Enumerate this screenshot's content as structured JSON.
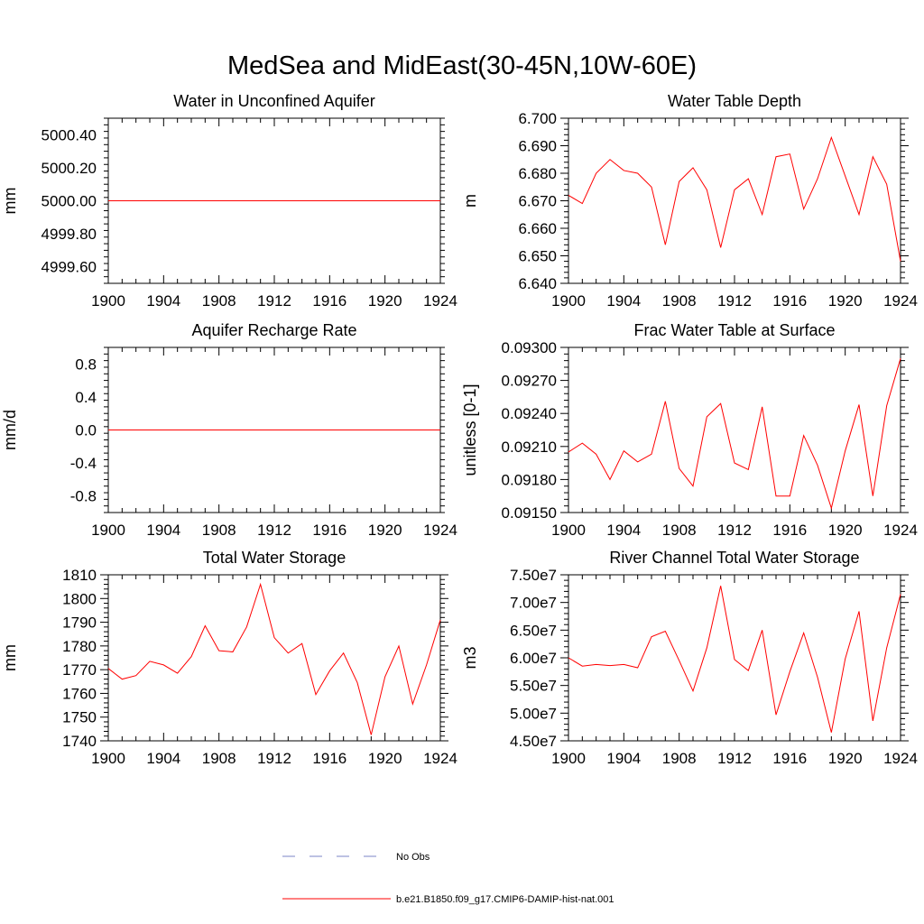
{
  "figure": {
    "title": "MedSea and MidEast(30-45N,10W-60E)"
  },
  "legend": [
    {
      "label": "No Obs",
      "color": "#7b86c7",
      "dash": true
    },
    {
      "label": "b.e21.B1850.f09_g17.CMIP6-DAMIP-hist-nat.001",
      "color": "#ff0000",
      "dash": false
    }
  ],
  "chart_data": [
    {
      "type": "line",
      "title": "Water in Unconfined Aquifer",
      "ylabel": "mm",
      "xlim": [
        1900,
        1924
      ],
      "ylim": [
        4999.5,
        5000.5
      ],
      "x_ticks": [
        1900,
        1904,
        1908,
        1912,
        1916,
        1920,
        1924
      ],
      "y_ticks": [
        4999.6,
        4999.8,
        5000.0,
        5000.2,
        5000.4
      ],
      "y_tick_labels": [
        "4999.60",
        "4999.80",
        "5000.00",
        "5000.20",
        "5000.40"
      ],
      "series": [
        {
          "x": [
            1900,
            1924
          ],
          "values": [
            5000.0,
            5000.0
          ],
          "color": "#ff0000"
        }
      ]
    },
    {
      "type": "line",
      "title": "Water Table Depth",
      "ylabel": "m",
      "xlim": [
        1900,
        1924
      ],
      "ylim": [
        6.64,
        6.7
      ],
      "x_ticks": [
        1900,
        1904,
        1908,
        1912,
        1916,
        1920,
        1924
      ],
      "y_ticks": [
        6.64,
        6.65,
        6.66,
        6.67,
        6.68,
        6.69,
        6.7
      ],
      "y_tick_labels": [
        "6.640",
        "6.650",
        "6.660",
        "6.670",
        "6.680",
        "6.690",
        "6.700"
      ],
      "series": [
        {
          "x": [
            1900,
            1901,
            1902,
            1903,
            1904,
            1905,
            1906,
            1907,
            1908,
            1909,
            1910,
            1911,
            1912,
            1913,
            1914,
            1915,
            1916,
            1917,
            1918,
            1919,
            1920,
            1921,
            1922,
            1923,
            1924
          ],
          "values": [
            6.672,
            6.669,
            6.68,
            6.685,
            6.681,
            6.68,
            6.675,
            6.654,
            6.677,
            6.682,
            6.674,
            6.653,
            6.674,
            6.678,
            6.665,
            6.686,
            6.687,
            6.667,
            6.678,
            6.693,
            6.679,
            6.665,
            6.686,
            6.676,
            6.648
          ],
          "color": "#ff0000"
        }
      ]
    },
    {
      "type": "line",
      "title": "Aquifer Recharge Rate",
      "ylabel": "mm/d",
      "xlim": [
        1900,
        1924
      ],
      "ylim": [
        -1.0,
        1.0
      ],
      "x_ticks": [
        1900,
        1904,
        1908,
        1912,
        1916,
        1920,
        1924
      ],
      "y_ticks": [
        -0.8,
        -0.4,
        0.0,
        0.4,
        0.8
      ],
      "y_tick_labels": [
        "-0.8",
        "-0.4",
        "0.0",
        "0.4",
        "0.8"
      ],
      "series": [
        {
          "x": [
            1900,
            1924
          ],
          "values": [
            0.0,
            0.0
          ],
          "color": "#ff0000"
        }
      ]
    },
    {
      "type": "line",
      "title": "Frac Water Table at Surface",
      "ylabel": "unitless [0-1]",
      "xlim": [
        1900,
        1924
      ],
      "ylim": [
        0.0915,
        0.093
      ],
      "x_ticks": [
        1900,
        1904,
        1908,
        1912,
        1916,
        1920,
        1924
      ],
      "y_ticks": [
        0.0915,
        0.0918,
        0.0921,
        0.0924,
        0.0927,
        0.093
      ],
      "y_tick_labels": [
        "0.09150",
        "0.09180",
        "0.09210",
        "0.09240",
        "0.09270",
        "0.09300"
      ],
      "series": [
        {
          "x": [
            1900,
            1901,
            1902,
            1903,
            1904,
            1905,
            1906,
            1907,
            1908,
            1909,
            1910,
            1911,
            1912,
            1913,
            1914,
            1915,
            1916,
            1917,
            1918,
            1919,
            1920,
            1921,
            1922,
            1923,
            1924
          ],
          "values": [
            0.09205,
            0.09213,
            0.09203,
            0.0918,
            0.09206,
            0.09196,
            0.09203,
            0.09251,
            0.0919,
            0.09174,
            0.09237,
            0.09249,
            0.09195,
            0.09189,
            0.09246,
            0.09165,
            0.09165,
            0.0922,
            0.09193,
            0.09154,
            0.09206,
            0.09248,
            0.09165,
            0.09247,
            0.0929
          ],
          "color": "#ff0000"
        }
      ]
    },
    {
      "type": "line",
      "title": "Total Water Storage",
      "ylabel": "mm",
      "xlim": [
        1900,
        1924
      ],
      "ylim": [
        1740,
        1810
      ],
      "x_ticks": [
        1900,
        1904,
        1908,
        1912,
        1916,
        1920,
        1924
      ],
      "y_ticks": [
        1740,
        1750,
        1760,
        1770,
        1780,
        1790,
        1800,
        1810
      ],
      "y_tick_labels": [
        "1740",
        "1750",
        "1760",
        "1770",
        "1780",
        "1790",
        "1800",
        "1810"
      ],
      "series": [
        {
          "x": [
            1900,
            1901,
            1902,
            1903,
            1904,
            1905,
            1906,
            1907,
            1908,
            1909,
            1910,
            1911,
            1912,
            1913,
            1914,
            1915,
            1916,
            1917,
            1918,
            1919,
            1920,
            1921,
            1922,
            1923,
            1924
          ],
          "values": [
            1770.5,
            1766.0,
            1767.5,
            1773.5,
            1772.0,
            1768.5,
            1775.5,
            1788.5,
            1778.0,
            1777.5,
            1788.0,
            1806.0,
            1783.5,
            1777.0,
            1781.0,
            1759.5,
            1769.5,
            1777.0,
            1764.5,
            1742.5,
            1767.0,
            1780.0,
            1755.5,
            1772.0,
            1791.0
          ],
          "color": "#ff0000"
        }
      ]
    },
    {
      "type": "line",
      "title": "River Channel Total Water Storage",
      "ylabel": "m3",
      "xlim": [
        1900,
        1924
      ],
      "ylim": [
        45000000.0,
        75000000.0
      ],
      "x_ticks": [
        1900,
        1904,
        1908,
        1912,
        1916,
        1920,
        1924
      ],
      "y_ticks": [
        45000000.0,
        50000000.0,
        55000000.0,
        60000000.0,
        65000000.0,
        70000000.0,
        75000000.0
      ],
      "y_tick_labels": [
        "4.50e7",
        "5.00e7",
        "5.50e7",
        "6.00e7",
        "6.50e7",
        "7.00e7",
        "7.50e7"
      ],
      "series": [
        {
          "x": [
            1900,
            1901,
            1902,
            1903,
            1904,
            1905,
            1906,
            1907,
            1908,
            1909,
            1910,
            1911,
            1912,
            1913,
            1914,
            1915,
            1916,
            1917,
            1918,
            1919,
            1920,
            1921,
            1922,
            1923,
            1924
          ],
          "values": [
            60000000,
            58500000,
            58800000,
            58600000,
            58800000,
            58200000,
            63800000,
            64800000,
            59500000,
            54000000,
            61800000,
            73000000,
            59700000,
            57700000,
            65000000,
            49700000,
            57500000,
            64500000,
            56500000,
            46500000,
            59800000,
            68400000,
            48600000,
            61800000,
            71500000
          ],
          "color": "#ff0000"
        }
      ]
    }
  ]
}
